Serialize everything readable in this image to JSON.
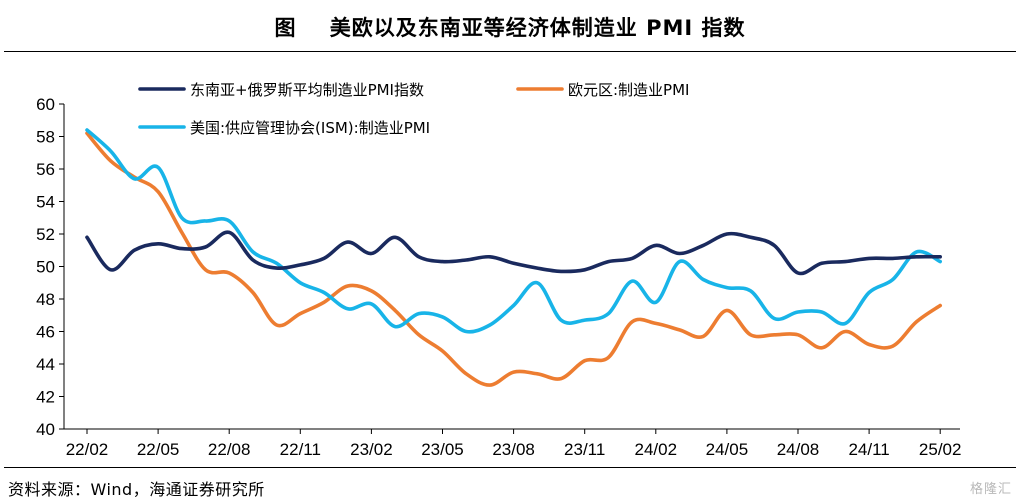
{
  "figure_title": "图    美欧以及东南亚等经济体制造业 PMI 指数",
  "source_note": "资料来源：Wind，海通证券研究所",
  "watermark": "格隆汇",
  "chart_data": {
    "type": "line",
    "title": "美欧以及东南亚等经济体制造业 PMI 指数",
    "xlabel": "",
    "ylabel": "",
    "ylim": [
      40,
      60
    ],
    "yticks": [
      40,
      42,
      44,
      46,
      48,
      50,
      52,
      54,
      56,
      58,
      60
    ],
    "xticks": [
      "22/02",
      "22/05",
      "22/08",
      "22/11",
      "23/02",
      "23/05",
      "23/08",
      "23/11",
      "24/02",
      "24/05",
      "24/08",
      "24/11",
      "25/02"
    ],
    "grid": false,
    "legend_position": "top",
    "x": [
      "22/02",
      "22/03",
      "22/04",
      "22/05",
      "22/06",
      "22/07",
      "22/08",
      "22/09",
      "22/10",
      "22/11",
      "22/12",
      "23/01",
      "23/02",
      "23/03",
      "23/04",
      "23/05",
      "23/06",
      "23/07",
      "23/08",
      "23/09",
      "23/10",
      "23/11",
      "23/12",
      "24/01",
      "24/02",
      "24/03",
      "24/04",
      "24/05",
      "24/06",
      "24/07",
      "24/08",
      "24/09",
      "24/10",
      "24/11",
      "24/12",
      "25/01",
      "25/02"
    ],
    "series": [
      {
        "name": "东南亚+俄罗斯平均制造业PMI指数",
        "color": "#1a2a5e",
        "values": [
          51.8,
          49.8,
          51.0,
          51.4,
          51.1,
          51.2,
          52.1,
          50.4,
          49.9,
          50.1,
          50.5,
          51.5,
          50.8,
          51.8,
          50.6,
          50.3,
          50.4,
          50.6,
          50.2,
          49.9,
          49.7,
          49.8,
          50.3,
          50.5,
          51.3,
          50.8,
          51.3,
          52.0,
          51.8,
          51.3,
          49.6,
          50.2,
          50.3,
          50.5,
          50.5,
          50.6,
          50.6
        ]
      },
      {
        "name": "欧元区:制造业PMI",
        "color": "#ed7d31",
        "values": [
          58.2,
          56.5,
          55.5,
          54.6,
          52.1,
          49.8,
          49.6,
          48.4,
          46.4,
          47.1,
          47.8,
          48.8,
          48.5,
          47.3,
          45.8,
          44.8,
          43.4,
          42.7,
          43.5,
          43.4,
          43.1,
          44.2,
          44.4,
          46.6,
          46.5,
          46.1,
          45.7,
          47.3,
          45.8,
          45.8,
          45.8,
          45.0,
          46.0,
          45.2,
          45.1,
          46.6,
          47.6
        ]
      },
      {
        "name": "美国:供应管理协会(ISM):制造业PMI",
        "color": "#18b4e8",
        "values": [
          58.4,
          57.1,
          55.4,
          56.1,
          53.0,
          52.8,
          52.8,
          50.9,
          50.2,
          49.0,
          48.4,
          47.4,
          47.7,
          46.3,
          47.1,
          46.9,
          46.0,
          46.4,
          47.6,
          49.0,
          46.7,
          46.7,
          47.1,
          49.1,
          47.8,
          50.3,
          49.2,
          48.7,
          48.5,
          46.8,
          47.2,
          47.2,
          46.5,
          48.4,
          49.2,
          50.9,
          50.3
        ]
      }
    ]
  }
}
